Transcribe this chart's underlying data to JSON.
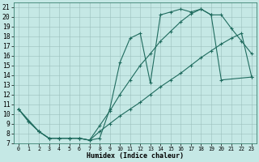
{
  "xlabel": "Humidex (Indice chaleur)",
  "bg_color": "#c5e8e5",
  "line_color": "#1f6b5e",
  "xlim": [
    -0.5,
    23.5
  ],
  "ylim": [
    7,
    21.5
  ],
  "xticks": [
    0,
    1,
    2,
    3,
    4,
    5,
    6,
    7,
    8,
    9,
    10,
    11,
    12,
    13,
    14,
    15,
    16,
    17,
    18,
    19,
    20,
    21,
    22,
    23
  ],
  "yticks": [
    7,
    8,
    9,
    10,
    11,
    12,
    13,
    14,
    15,
    16,
    17,
    18,
    19,
    20,
    21
  ],
  "curve1_x": [
    0,
    1,
    2,
    3,
    4,
    5,
    6,
    7,
    8,
    9,
    10,
    11,
    12,
    13,
    14,
    15,
    16,
    17,
    18,
    19,
    20,
    21,
    22,
    23
  ],
  "curve1_y": [
    10.5,
    9.2,
    8.2,
    7.5,
    7.5,
    7.5,
    7.5,
    7.3,
    7.5,
    10.5,
    15.3,
    17.8,
    18.3,
    13.2,
    20.2,
    20.5,
    20.8,
    20.5,
    20.8,
    20.2,
    20.2,
    18.8,
    17.5,
    16.2
  ],
  "curve2_x": [
    0,
    1,
    2,
    3,
    4,
    5,
    6,
    7,
    8,
    9,
    10,
    11,
    12,
    13,
    14,
    15,
    16,
    17,
    18,
    19,
    20,
    23
  ],
  "curve2_y": [
    10.5,
    9.2,
    8.2,
    7.5,
    7.5,
    7.5,
    7.5,
    7.3,
    8.8,
    10.3,
    12.0,
    13.5,
    15.0,
    16.2,
    17.5,
    18.5,
    19.5,
    20.3,
    20.8,
    20.2,
    13.5,
    13.8
  ],
  "curve3_x": [
    0,
    2,
    3,
    4,
    5,
    6,
    7,
    8,
    9,
    10,
    11,
    12,
    13,
    14,
    15,
    16,
    17,
    18,
    19,
    20,
    21,
    22,
    23
  ],
  "curve3_y": [
    10.5,
    8.2,
    7.5,
    7.5,
    7.5,
    7.5,
    7.3,
    8.2,
    9.0,
    9.8,
    10.5,
    11.2,
    12.0,
    12.8,
    13.5,
    14.2,
    15.0,
    15.8,
    16.5,
    17.2,
    17.8,
    18.3,
    13.8
  ]
}
